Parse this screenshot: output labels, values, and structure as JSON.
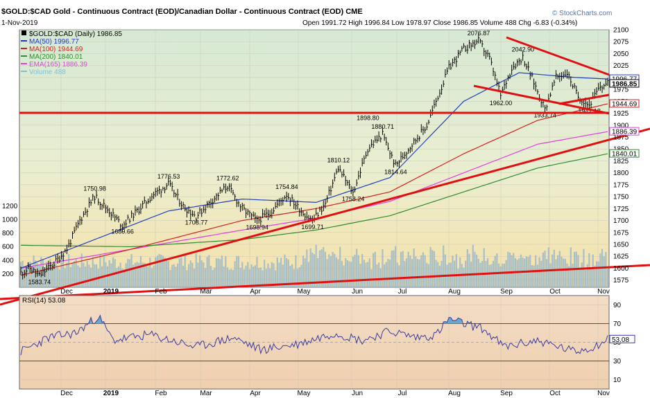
{
  "header": {
    "title": "$GOLD:$CAD Gold - Continuous Contract (EOD)/Canadian Dollar - Continuous Contract (EOD) CME",
    "date": "1-Nov-2019",
    "ohlc": "Open 1991.72  High 1996.84  Low 1978.97  Close 1986.85  Volume 488  Chg -6.83 (-0.34%)",
    "watermark": "© StockCharts.com"
  },
  "legend": [
    {
      "text": "$GOLD:$CAD (Daily) 1986.85",
      "color": "#000000"
    },
    {
      "text": "MA(50) 1996.77",
      "color": "#1f3fbf"
    },
    {
      "text": "MA(100) 1944.69",
      "color": "#d22020"
    },
    {
      "text": "MA(200) 1840.01",
      "color": "#2e8b2e"
    },
    {
      "text": "EMA(165) 1886.39",
      "color": "#e040e0"
    },
    {
      "text": "Volume 488",
      "color": "#7fbfd0"
    }
  ],
  "rsi_label": "RSI(14) 53.08",
  "colors": {
    "price": "#000000",
    "ma50": "#1f3fbf",
    "ma100": "#d22020",
    "ma200": "#2e8b2e",
    "ema165": "#e040e0",
    "trend": "#e01010",
    "volume": "#9cb8c8"
  },
  "chart_data": {
    "type": "line",
    "price_axis": {
      "ticks": [
        1575,
        1600,
        1625,
        1650,
        1675,
        1700,
        1725,
        1750,
        1775,
        1800,
        1825,
        1850,
        1875,
        1900,
        1925,
        1950,
        1975,
        2000,
        2025,
        2050,
        2075,
        2100
      ],
      "ylim": [
        1560,
        2100
      ]
    },
    "volume_axis": {
      "ticks": [
        200,
        400,
        600,
        800,
        1000,
        1200
      ]
    },
    "x_labels": [
      "Dec",
      "2019",
      "Feb",
      "Mar",
      "Apr",
      "May",
      "Jun",
      "Jul",
      "Aug",
      "Sep",
      "Oct",
      "Nov"
    ],
    "annotations": [
      "1583.74",
      "1750.98",
      "1689.66",
      "1776.53",
      "1708.77",
      "1772.62",
      "1698.94",
      "1754.84",
      "1699.71",
      "1810.12",
      "1758.24",
      "1898.80",
      "1880.71",
      "1814.64",
      "2076.87",
      "2042.90",
      "1962.00",
      "1933.74",
      "1942.18"
    ],
    "right_tags": [
      "1996.77",
      "1986.85",
      "1944.69",
      "1886.39",
      "1840.01"
    ],
    "series": [
      {
        "name": "$GOLD:$CAD (Daily)",
        "points": [
          [
            0,
            1590
          ],
          [
            5,
            1600
          ],
          [
            10,
            1583.74
          ],
          [
            18,
            1610
          ],
          [
            25,
            1640
          ],
          [
            32,
            1700
          ],
          [
            40,
            1750.98
          ],
          [
            48,
            1720
          ],
          [
            55,
            1689.66
          ],
          [
            63,
            1720
          ],
          [
            72,
            1755
          ],
          [
            80,
            1776.53
          ],
          [
            88,
            1730
          ],
          [
            95,
            1708.77
          ],
          [
            103,
            1740
          ],
          [
            112,
            1772.62
          ],
          [
            120,
            1725
          ],
          [
            128,
            1698.94
          ],
          [
            136,
            1720
          ],
          [
            144,
            1754.84
          ],
          [
            152,
            1720
          ],
          [
            158,
            1699.71
          ],
          [
            165,
            1735
          ],
          [
            172,
            1810.12
          ],
          [
            180,
            1758.24
          ],
          [
            188,
            1850
          ],
          [
            196,
            1880.71
          ],
          [
            203,
            1814.64
          ],
          [
            212,
            1860
          ],
          [
            220,
            1898.8
          ],
          [
            226,
            1960
          ],
          [
            232,
            2020
          ],
          [
            240,
            2060
          ],
          [
            248,
            2076.87
          ],
          [
            254,
            2040
          ],
          [
            260,
            1962.0
          ],
          [
            266,
            2020
          ],
          [
            272,
            2042.9
          ],
          [
            278,
            1990
          ],
          [
            284,
            1933.74
          ],
          [
            290,
            2000
          ],
          [
            296,
            2010
          ],
          [
            302,
            1960
          ],
          [
            308,
            1942.18
          ],
          [
            314,
            1980
          ],
          [
            318,
            1986.85
          ]
        ]
      },
      {
        "name": "MA(50)",
        "points": [
          [
            0,
            1600
          ],
          [
            40,
            1660
          ],
          [
            80,
            1720
          ],
          [
            120,
            1745
          ],
          [
            160,
            1738
          ],
          [
            200,
            1790
          ],
          [
            240,
            1950
          ],
          [
            270,
            2010
          ],
          [
            300,
            2000
          ],
          [
            318,
            1996.77
          ]
        ]
      },
      {
        "name": "MA(100)",
        "points": [
          [
            0,
            1585
          ],
          [
            60,
            1640
          ],
          [
            120,
            1700
          ],
          [
            160,
            1725
          ],
          [
            200,
            1760
          ],
          [
            240,
            1840
          ],
          [
            280,
            1910
          ],
          [
            318,
            1944.69
          ]
        ]
      },
      {
        "name": "MA(200)",
        "points": [
          [
            0,
            1648
          ],
          [
            60,
            1645
          ],
          [
            120,
            1660
          ],
          [
            160,
            1680
          ],
          [
            200,
            1710
          ],
          [
            240,
            1760
          ],
          [
            280,
            1810
          ],
          [
            318,
            1840.01
          ]
        ]
      },
      {
        "name": "EMA(165)",
        "points": [
          [
            0,
            1600
          ],
          [
            60,
            1640
          ],
          [
            120,
            1680
          ],
          [
            160,
            1705
          ],
          [
            200,
            1740
          ],
          [
            240,
            1800
          ],
          [
            280,
            1860
          ],
          [
            318,
            1886.39
          ]
        ]
      }
    ],
    "rsi": {
      "ylim": [
        0,
        100
      ],
      "ticks": [
        10,
        30,
        50,
        70,
        90
      ],
      "last": 53.08,
      "points": [
        [
          0,
          40
        ],
        [
          15,
          55
        ],
        [
          30,
          60
        ],
        [
          42,
          78
        ],
        [
          50,
          52
        ],
        [
          70,
          58
        ],
        [
          95,
          45
        ],
        [
          115,
          55
        ],
        [
          130,
          42
        ],
        [
          150,
          48
        ],
        [
          170,
          60
        ],
        [
          185,
          52
        ],
        [
          200,
          62
        ],
        [
          215,
          55
        ],
        [
          225,
          58
        ],
        [
          232,
          75
        ],
        [
          240,
          70
        ],
        [
          250,
          65
        ],
        [
          262,
          45
        ],
        [
          280,
          52
        ],
        [
          300,
          40
        ],
        [
          310,
          45
        ],
        [
          318,
          53.08
        ]
      ]
    }
  }
}
